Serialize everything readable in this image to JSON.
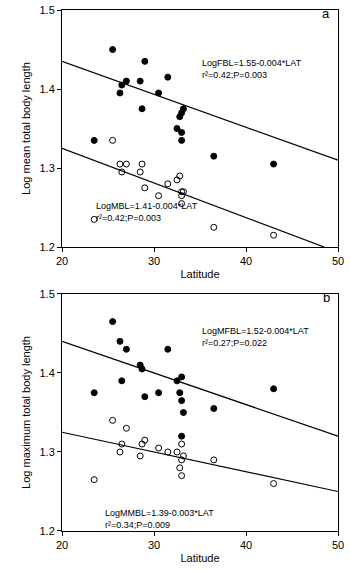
{
  "chart_data": [
    {
      "type": "scatter",
      "annotations": [
        "a",
        "LogFBL=1.55-0.004*LAT\nr²=0.42;P=0.003",
        "LogMBL=1.41-0.004*LAT\nr²=0.42;P=0.003"
      ],
      "x_label": "Latitude",
      "y_label": "Log mean total body length",
      "xlim": [
        20,
        50
      ],
      "xticks": [
        20,
        30,
        40,
        50
      ],
      "ylim": [
        1.2,
        1.5
      ],
      "yticks": [
        1.2,
        1.3,
        1.4,
        1.5
      ],
      "grid": false,
      "series": [
        {
          "type": "scatter",
          "marker": "filled",
          "color": "#000000",
          "x": [
            23.5,
            25.5,
            26.3,
            26.5,
            27,
            28.5,
            28.7,
            29,
            30.5,
            31.5,
            32.5,
            32.8,
            33,
            33,
            33.2,
            33,
            36.5,
            43
          ],
          "values": [
            1.335,
            1.45,
            1.395,
            1.405,
            1.41,
            1.41,
            1.375,
            1.435,
            1.395,
            1.415,
            1.35,
            1.365,
            1.37,
            1.345,
            1.375,
            1.335,
            1.315,
            1.305
          ]
        },
        {
          "type": "scatter",
          "marker": "open",
          "color": "#000000",
          "x": [
            23.5,
            25.5,
            26.3,
            26.5,
            27,
            28.5,
            28.7,
            29,
            30.5,
            31.5,
            32.5,
            32.8,
            33,
            33,
            33.2,
            33,
            36.5,
            43
          ],
          "values": [
            1.235,
            1.335,
            1.305,
            1.295,
            1.305,
            1.295,
            1.305,
            1.275,
            1.265,
            1.28,
            1.285,
            1.29,
            1.265,
            1.27,
            1.27,
            1.255,
            1.225,
            1.215
          ]
        },
        {
          "type": "line",
          "line_style": "solid",
          "color": "#000000",
          "x": [
            20,
            50
          ],
          "values": [
            1.435,
            1.31
          ]
        },
        {
          "type": "line",
          "line_style": "solid",
          "color": "#000000",
          "x": [
            20,
            48.5
          ],
          "values": [
            1.325,
            1.2
          ]
        }
      ]
    },
    {
      "type": "scatter",
      "annotations": [
        "b",
        "LogMFBL=1.52-0.004*LAT\nr²=0.27;P=0.022",
        "LogMMBL=1.39-0.003*LAT\nr²=0.34;P=0.009"
      ],
      "x_label": "Latitude",
      "y_label": "Log maximum total body length",
      "xlim": [
        20,
        50
      ],
      "xticks": [
        20,
        30,
        40,
        50
      ],
      "ylim": [
        1.2,
        1.5
      ],
      "yticks": [
        1.2,
        1.3,
        1.4,
        1.5
      ],
      "grid": false,
      "series": [
        {
          "type": "scatter",
          "marker": "filled",
          "color": "#000000",
          "x": [
            23.5,
            25.5,
            26.3,
            26.5,
            27,
            28.5,
            28.7,
            29,
            30.5,
            31.5,
            32.5,
            32.8,
            33,
            33,
            33.2,
            33,
            36.5,
            43
          ],
          "values": [
            1.375,
            1.465,
            1.44,
            1.39,
            1.43,
            1.41,
            1.405,
            1.37,
            1.375,
            1.43,
            1.39,
            1.375,
            1.395,
            1.365,
            1.35,
            1.32,
            1.355,
            1.38
          ]
        },
        {
          "type": "scatter",
          "marker": "open",
          "color": "#000000",
          "x": [
            23.5,
            25.5,
            26.3,
            26.5,
            27,
            28.5,
            28.7,
            29,
            30.5,
            31.5,
            32.5,
            32.8,
            33,
            33,
            33.2,
            33,
            36.5,
            43
          ],
          "values": [
            1.265,
            1.34,
            1.3,
            1.31,
            1.33,
            1.295,
            1.31,
            1.315,
            1.305,
            1.3,
            1.3,
            1.28,
            1.29,
            1.31,
            1.295,
            1.27,
            1.29,
            1.26
          ]
        },
        {
          "type": "line",
          "line_style": "solid",
          "color": "#000000",
          "x": [
            20,
            50
          ],
          "values": [
            1.44,
            1.32
          ]
        },
        {
          "type": "line",
          "line_style": "solid",
          "color": "#000000",
          "x": [
            20,
            50
          ],
          "values": [
            1.325,
            1.25
          ]
        }
      ]
    }
  ]
}
